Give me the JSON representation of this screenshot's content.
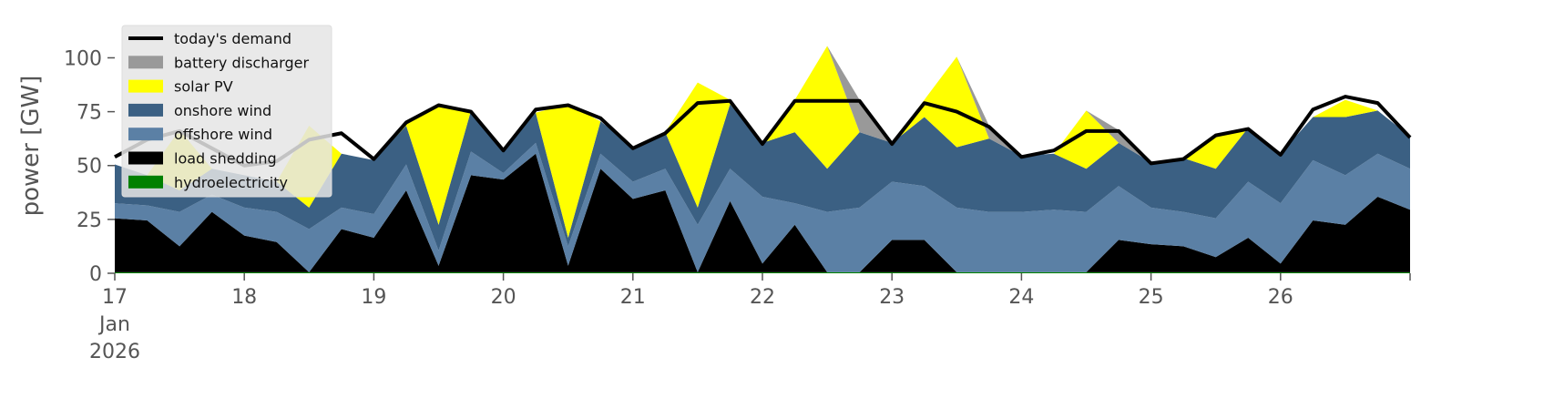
{
  "chart_data": {
    "type": "area",
    "ylabel": "power [GW]",
    "x": [
      17,
      17.25,
      17.5,
      17.75,
      18,
      18.25,
      18.5,
      18.75,
      19,
      19.25,
      19.5,
      19.75,
      20,
      20.25,
      20.5,
      20.75,
      21,
      21.25,
      21.5,
      21.75,
      22,
      22.25,
      22.5,
      22.75,
      23,
      23.25,
      23.5,
      23.75,
      24,
      24.25,
      24.5,
      24.75,
      25,
      25.25,
      25.5,
      25.75,
      26,
      26.25,
      26.5,
      26.75,
      27
    ],
    "xlim": [
      17,
      27
    ],
    "xticks": [
      {
        "value": 17,
        "label": "17\nJan\n2026"
      },
      18,
      19,
      20,
      21,
      22,
      23,
      24,
      25,
      26
    ],
    "ylim": [
      0,
      115
    ],
    "yticks": [
      0,
      25,
      50,
      75,
      100
    ],
    "legend": "upper left",
    "series": [
      {
        "name": "hydroelectricity",
        "color": "#008000",
        "values": [
          0.5,
          0.5,
          0.5,
          0.5,
          0.5,
          0.5,
          0.5,
          0.5,
          0.5,
          0.5,
          0.5,
          0.5,
          0.5,
          0.5,
          0.5,
          0.5,
          0.5,
          0.5,
          0.5,
          0.5,
          0.5,
          0.5,
          0.5,
          0.5,
          0.5,
          0.5,
          0.5,
          0.5,
          0.5,
          0.5,
          0.5,
          0.5,
          0.5,
          0.5,
          0.5,
          0.5,
          0.5,
          0.5,
          0.5,
          0.5,
          0.5
        ]
      },
      {
        "name": "load shedding",
        "color": "#000000",
        "values": [
          25,
          24,
          12,
          28,
          17,
          14,
          0,
          20,
          16,
          38,
          3,
          45,
          43,
          55,
          3,
          48,
          34,
          38,
          0,
          33,
          4,
          22,
          0,
          0,
          15,
          15,
          0,
          0,
          0,
          0,
          0,
          15,
          13,
          12,
          7,
          16,
          4,
          24,
          22,
          35,
          29
        ]
      },
      {
        "name": "offshore wind",
        "color": "#5b80a5",
        "values": [
          7,
          7,
          16,
          8,
          13,
          14,
          20,
          10,
          11,
          12,
          7,
          11,
          3,
          5,
          9,
          7,
          8,
          10,
          22,
          15,
          31,
          10,
          28,
          30,
          27,
          25,
          30,
          28,
          28,
          29,
          28,
          25,
          17,
          16,
          18,
          26,
          28,
          28,
          23,
          20,
          19
        ]
      },
      {
        "name": "onshore wind",
        "color": "#3b6083",
        "values": [
          18,
          14,
          10,
          12,
          15,
          14,
          10,
          25,
          25,
          18,
          12,
          19,
          11,
          14,
          4,
          15,
          16,
          17,
          8,
          30,
          25,
          33,
          20,
          35,
          18,
          32,
          28,
          34,
          26,
          26,
          20,
          20,
          21,
          25,
          23,
          25,
          23,
          20,
          27,
          20,
          15
        ]
      },
      {
        "name": "solar PV",
        "color": "#ffff00",
        "values": [
          0,
          0,
          28,
          0,
          0,
          0,
          38,
          0,
          0,
          2,
          56,
          0,
          0,
          0,
          62,
          0,
          0,
          0,
          58,
          2,
          0,
          15,
          57,
          0,
          0,
          8,
          42,
          0,
          0,
          0,
          27,
          0,
          0,
          0,
          16,
          0,
          0,
          0,
          8,
          0,
          0
        ]
      },
      {
        "name": "battery discharger",
        "color": "#999999",
        "values": [
          0,
          0,
          0,
          0,
          0,
          0,
          0,
          0,
          0,
          0,
          0,
          0,
          0,
          0,
          0,
          0,
          0,
          0,
          0,
          0,
          0,
          0,
          0,
          15,
          0,
          0,
          0,
          6,
          0,
          0,
          0,
          6,
          0,
          0,
          0,
          0,
          0,
          0,
          0,
          0,
          0
        ]
      },
      {
        "name": "today's demand",
        "type": "line",
        "color": "#000000",
        "values": [
          54,
          62,
          66,
          58,
          50,
          52,
          62,
          65,
          53,
          70,
          78,
          75,
          57,
          76,
          78,
          72,
          58,
          65,
          79,
          80,
          60,
          80,
          80,
          80,
          60,
          79,
          75,
          68,
          54,
          57,
          66,
          66,
          51,
          53,
          64,
          67,
          55,
          76,
          82,
          79,
          63
        ]
      }
    ]
  }
}
